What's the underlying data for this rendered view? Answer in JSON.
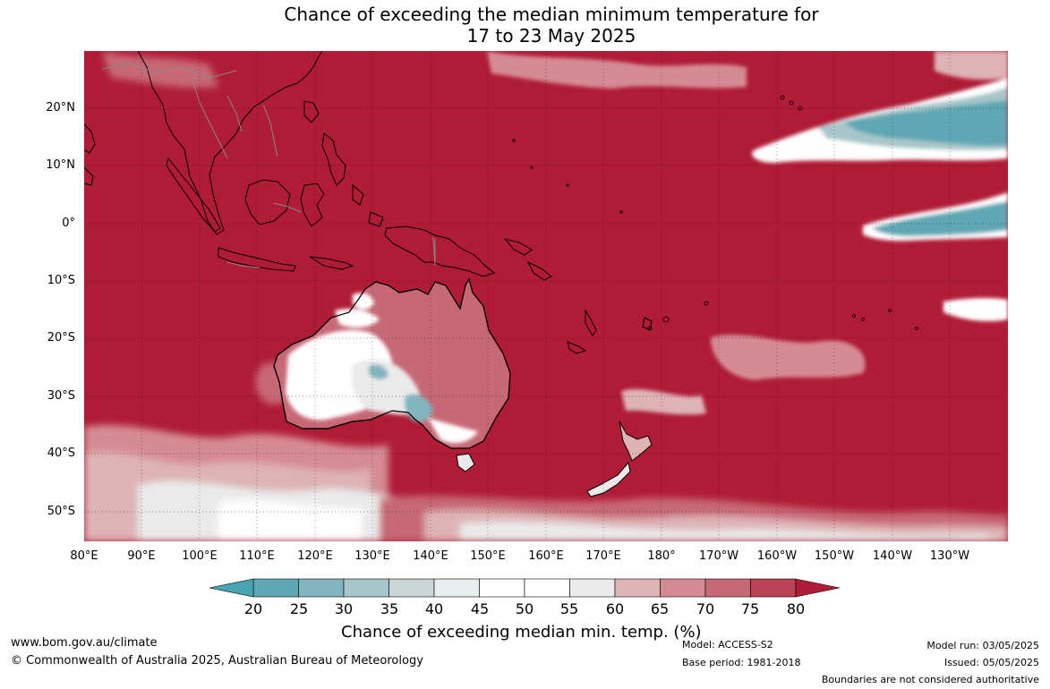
{
  "title": {
    "line1": "Chance of exceeding the median minimum temperature for",
    "line2": "17 to 23 May 2025"
  },
  "map": {
    "lat_labels": [
      "20°N",
      "10°N",
      "0°",
      "10°S",
      "20°S",
      "30°S",
      "40°S",
      "50°S"
    ],
    "lon_labels": [
      "80°E",
      "90°E",
      "100°E",
      "110°E",
      "120°E",
      "130°E",
      "140°E",
      "150°E",
      "160°E",
      "170°E",
      "180°",
      "170°W",
      "160°W",
      "150°W",
      "140°W",
      "130°W"
    ],
    "dominant_color": "#b01c36",
    "boundary_color": "#000000",
    "internal_boundary_color": "#888888",
    "grid_style": "dotted"
  },
  "legend": {
    "title": "Chance of exceeding median min. temp. (%)",
    "ticks": [
      "20",
      "25",
      "30",
      "35",
      "40",
      "45",
      "50",
      "55",
      "60",
      "65",
      "70",
      "75",
      "80"
    ],
    "colors": [
      "#5ea7b4",
      "#82b5c0",
      "#a7c6c9",
      "#cbd7d7",
      "#e6eeee",
      "#ffffff",
      "#ffffff",
      "#eaeaea",
      "#deb3b6",
      "#d58b93",
      "#c76875",
      "#bb4353"
    ],
    "under_color": "#47a5b4",
    "over_color": "#b01c36"
  },
  "footer": {
    "website": "www.bom.gov.au/climate",
    "copyright": "© Commonwealth of Australia 2025, Australian Bureau of Meteorology",
    "model": "Model: ACCESS-S2",
    "base_period": "Base period: 1981-2018",
    "model_run": "Model run: 03/05/2025",
    "issued": "Issued: 05/05/2025",
    "disclaimer": "Boundaries are not considered authoritative"
  }
}
